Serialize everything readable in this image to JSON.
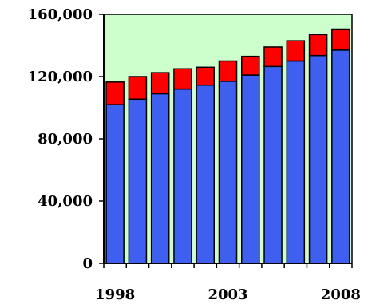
{
  "chart_data": {
    "type": "bar",
    "stacked": true,
    "x": [
      1998,
      1999,
      2000,
      2001,
      2002,
      2003,
      2004,
      2005,
      2006,
      2007,
      2008
    ],
    "x_tick_labels": [
      "1998",
      "2003",
      "2008"
    ],
    "series": [
      {
        "color": "#3f5ff0",
        "values": [
          102000,
          105500,
          109000,
          112000,
          114500,
          117000,
          121000,
          126500,
          130000,
          133500,
          137000
        ]
      },
      {
        "color": "#ff0000",
        "values": [
          14500,
          14500,
          13500,
          13000,
          11500,
          13000,
          12000,
          12500,
          13000,
          13500,
          13500
        ]
      }
    ],
    "ylim": [
      0,
      160000
    ],
    "y_ticks": [
      0,
      40000,
      80000,
      120000,
      160000
    ],
    "y_tick_labels": [
      "0",
      "40,000",
      "80,000",
      "120,000",
      "160,000"
    ],
    "title": "",
    "xlabel": "",
    "ylabel": "",
    "plot_background": "#ccffcc",
    "grid": false,
    "legend": "none"
  }
}
